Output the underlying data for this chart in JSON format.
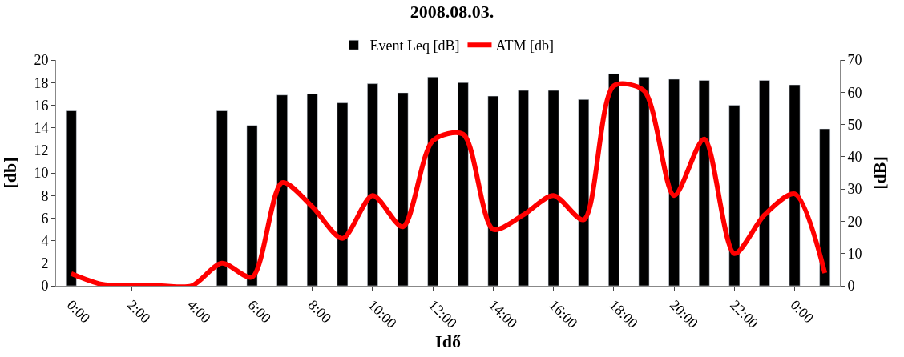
{
  "chart_data": {
    "type": "bar",
    "title": "2008.08.03.",
    "xlabel": "Idő",
    "ylabel": "[db]",
    "y2label": "[dB]",
    "categories": [
      "0:00",
      null,
      "2:00",
      null,
      "4:00",
      null,
      "6:00",
      null,
      "8:00",
      null,
      "10:00",
      null,
      "12:00",
      null,
      "14:00",
      null,
      "16:00",
      null,
      "18:00",
      null,
      "20:00",
      null,
      "22:00",
      null,
      "0:00",
      null
    ],
    "series": [
      {
        "name": "Event Leq [dB]",
        "color": "#000000",
        "values": [
          15.5,
          null,
          null,
          null,
          null,
          15.5,
          14.2,
          16.9,
          17.0,
          16.2,
          17.9,
          17.1,
          18.5,
          18.0,
          16.8,
          17.3,
          17.3,
          16.5,
          18.8,
          18.5,
          18.3,
          18.2,
          16.0,
          18.2,
          17.8,
          13.9
        ]
      },
      {
        "name": "ATM [db]",
        "type": "line",
        "axis": "y2",
        "color": "#ff0000",
        "values": [
          3.8,
          0.5,
          0,
          0,
          0,
          7,
          2.7,
          32,
          24.5,
          14.7,
          28,
          18.3,
          45,
          47,
          17.5,
          22,
          28,
          20.5,
          62,
          60.5,
          28,
          45.5,
          10,
          22,
          28.5,
          4
        ]
      }
    ],
    "ylim": [
      0,
      20
    ],
    "yticks": [
      0,
      2,
      4,
      6,
      8,
      10,
      12,
      14,
      16,
      18,
      20
    ],
    "y2lim": [
      0,
      70
    ],
    "y2ticks": [
      0,
      10,
      20,
      30,
      40,
      50,
      60,
      70
    ],
    "legend": "top",
    "marker": "none",
    "line_style": "solid"
  }
}
